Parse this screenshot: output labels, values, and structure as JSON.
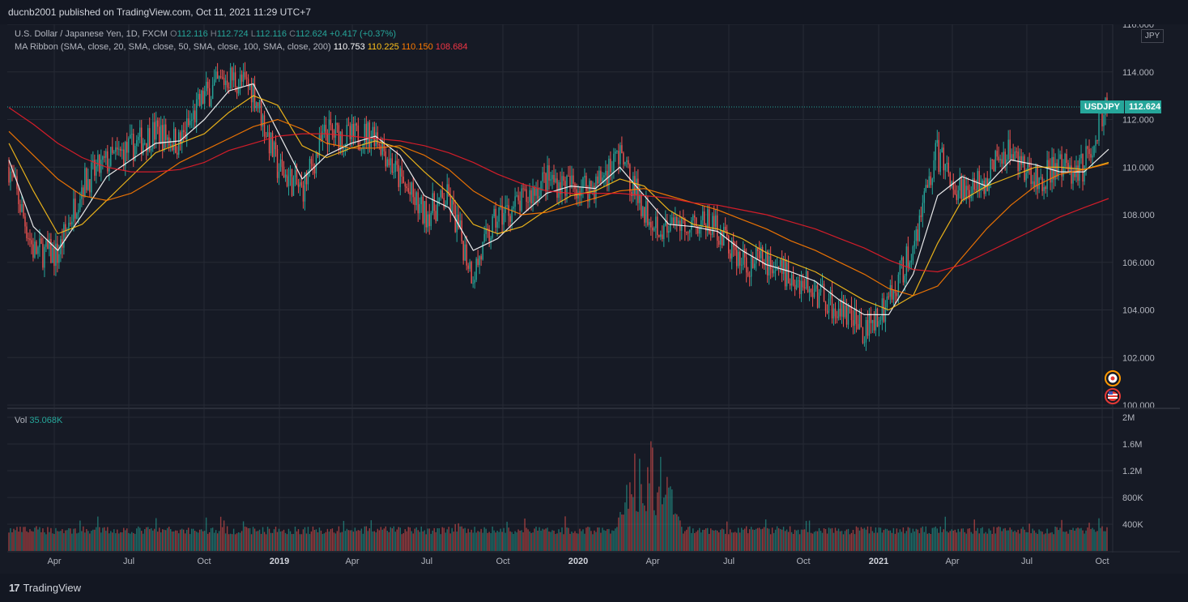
{
  "header": {
    "publisher": "ducnb2001 published on TradingView.com, Oct 11, 2021 11:29 UTC+7"
  },
  "legend": {
    "symbol": "U.S. Dollar / Japanese Yen, 1D, FXCM",
    "o_label": "O",
    "o_value": "112.116",
    "h_label": "H",
    "h_value": "112.724",
    "l_label": "L",
    "l_value": "112.116",
    "c_label": "C",
    "c_value": "112.624",
    "change": "+0.417 (+0.37%)",
    "ma_label": "MA Ribbon (SMA, close, 20, SMA, close, 50, SMA, close, 100, SMA, close, 200)",
    "ma20": "110.753",
    "ma50": "110.225",
    "ma100": "110.150",
    "ma200": "108.684",
    "vol_label": "Vol",
    "vol_value": "35.068K"
  },
  "price_tag": {
    "symbol": "USDJPY",
    "value": "112.624"
  },
  "currency": "JPY",
  "footer": {
    "brand": "TradingView",
    "logo_mark": "17"
  },
  "colors": {
    "up": "#26a69a",
    "down": "#ef5350",
    "ma20": "#ffffff",
    "ma50": "#ffc21a",
    "ma100": "#ff7b00",
    "ma200": "#e81e2a",
    "grid": "#262a35",
    "axis_text": "#b2b5be"
  },
  "chart_data": {
    "type": "line",
    "title": "U.S. Dollar / Japanese Yen, 1D, FXCM",
    "x_ticks": [
      "Apr",
      "Jul",
      "Oct",
      "2019",
      "Apr",
      "Jul",
      "Oct",
      "2020",
      "Apr",
      "Jul",
      "Oct",
      "2021",
      "Apr",
      "Jul",
      "Oct"
    ],
    "y_ticks": [
      "116.000",
      "114.000",
      "112.000",
      "110.000",
      "108.000",
      "106.000",
      "104.000",
      "102.000",
      "100.000"
    ],
    "ylim": [
      100,
      116
    ],
    "vol_ticks": [
      "2M",
      "1.6M",
      "1.2M",
      "800K",
      "400K"
    ],
    "vol_ylim": [
      0,
      2000000
    ],
    "last_price": 112.624,
    "series": [
      {
        "name": "USDJPY",
        "x": [
          "2018-01",
          "2018-02",
          "2018-03",
          "2018-04",
          "2018-05",
          "2018-06",
          "2018-07",
          "2018-08",
          "2018-09",
          "2018-10",
          "2018-11",
          "2018-12",
          "2019-01",
          "2019-02",
          "2019-03",
          "2019-04",
          "2019-05",
          "2019-06",
          "2019-07",
          "2019-08",
          "2019-09",
          "2019-10",
          "2019-11",
          "2019-12",
          "2020-01",
          "2020-02",
          "2020-03",
          "2020-04",
          "2020-05",
          "2020-06",
          "2020-07",
          "2020-08",
          "2020-09",
          "2020-10",
          "2020-11",
          "2020-12",
          "2021-01",
          "2021-02",
          "2021-03",
          "2021-04",
          "2021-05",
          "2021-06",
          "2021-07",
          "2021-08",
          "2021-09",
          "2021-10"
        ],
        "values": [
          110.0,
          106.5,
          106.3,
          109.3,
          110.2,
          110.8,
          111.5,
          111.0,
          113.0,
          113.8,
          113.3,
          110.0,
          109.0,
          111.5,
          111.2,
          111.5,
          109.5,
          108.0,
          108.7,
          105.5,
          107.9,
          108.5,
          109.5,
          109.2,
          109.2,
          110.5,
          108.3,
          107.2,
          107.8,
          107.5,
          106.0,
          106.0,
          105.5,
          104.8,
          104.0,
          103.2,
          104.3,
          106.5,
          110.6,
          109.0,
          109.5,
          111.0,
          109.5,
          109.9,
          110.0,
          112.6
        ]
      },
      {
        "name": "SMA 20",
        "values": [
          110.3,
          107.5,
          106.5,
          108.0,
          109.6,
          110.3,
          111.0,
          111.1,
          112.0,
          113.2,
          113.5,
          111.5,
          109.5,
          110.5,
          111.0,
          111.3,
          110.5,
          108.8,
          108.3,
          106.5,
          107.0,
          108.0,
          108.9,
          109.2,
          109.1,
          110.0,
          108.8,
          107.6,
          107.5,
          107.3,
          106.5,
          105.9,
          105.6,
          105.2,
          104.4,
          103.8,
          103.8,
          105.5,
          108.8,
          109.6,
          109.2,
          110.3,
          110.1,
          109.8,
          109.8,
          110.75
        ]
      },
      {
        "name": "SMA 50",
        "values": [
          111.0,
          109.0,
          107.2,
          107.6,
          108.6,
          109.6,
          110.6,
          111.0,
          111.4,
          112.3,
          113.0,
          112.6,
          110.9,
          110.4,
          110.8,
          111.1,
          110.8,
          109.8,
          108.9,
          107.6,
          107.2,
          107.5,
          108.2,
          108.8,
          109.0,
          109.5,
          109.2,
          108.2,
          107.6,
          107.4,
          107.0,
          106.4,
          106.0,
          105.6,
          105.0,
          104.4,
          104.0,
          104.6,
          106.8,
          108.6,
          109.2,
          109.6,
          110.0,
          110.0,
          109.9,
          110.2
        ]
      },
      {
        "name": "SMA 100",
        "values": [
          111.5,
          110.5,
          109.5,
          108.8,
          108.6,
          108.9,
          109.5,
          110.2,
          110.7,
          111.2,
          111.7,
          112.0,
          111.6,
          111.0,
          110.8,
          110.8,
          110.9,
          110.5,
          109.9,
          109.0,
          108.4,
          108.0,
          108.1,
          108.4,
          108.7,
          109.0,
          109.1,
          108.8,
          108.5,
          108.2,
          107.8,
          107.4,
          106.9,
          106.5,
          106.0,
          105.5,
          104.9,
          104.6,
          105.0,
          106.2,
          107.4,
          108.4,
          109.2,
          109.7,
          109.9,
          110.15
        ]
      },
      {
        "name": "SMA 200",
        "values": [
          112.5,
          111.8,
          111.0,
          110.4,
          110.0,
          109.8,
          109.8,
          109.9,
          110.2,
          110.7,
          111.0,
          111.3,
          111.4,
          111.4,
          111.3,
          111.2,
          111.1,
          110.9,
          110.6,
          110.2,
          109.7,
          109.3,
          109.0,
          108.9,
          108.9,
          108.9,
          108.8,
          108.7,
          108.5,
          108.4,
          108.2,
          108.0,
          107.7,
          107.4,
          107.0,
          106.6,
          106.1,
          105.7,
          105.6,
          105.9,
          106.4,
          106.9,
          107.4,
          107.9,
          108.3,
          108.68
        ]
      }
    ]
  }
}
